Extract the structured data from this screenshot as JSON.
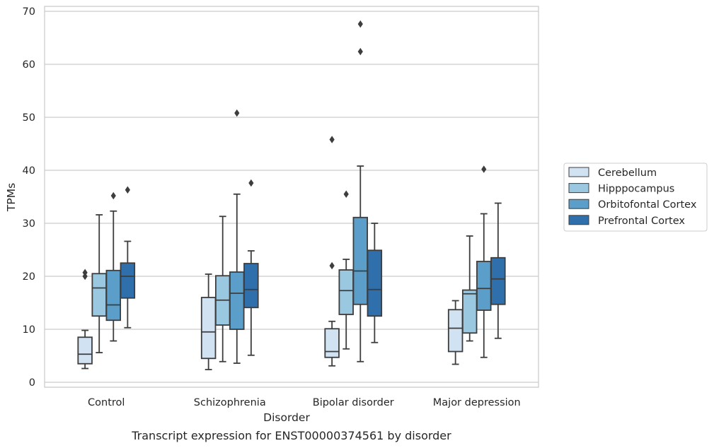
{
  "caption": "Transcript expression for ENST00000374561 by disorder",
  "chart_data": {
    "type": "box",
    "xlabel": "Disorder",
    "ylabel": "TPMs",
    "ylim": [
      -1,
      71
    ],
    "yticks": [
      0,
      10,
      20,
      30,
      40,
      50,
      60,
      70
    ],
    "grid": "horizontal",
    "legend_position": "right",
    "categories": [
      "Control",
      "Schizophrenia",
      "Bipolar disorder",
      "Major depression"
    ],
    "series": [
      {
        "name": "Cerebellum",
        "color": "#d1e2f2",
        "boxes": [
          {
            "whislo": 2.6,
            "q1": 3.5,
            "med": 5.3,
            "q3": 8.5,
            "whishi": 9.8,
            "fliers": [
              20.0,
              20.7
            ]
          },
          {
            "whislo": 2.4,
            "q1": 4.5,
            "med": 9.5,
            "q3": 16.0,
            "whishi": 20.4,
            "fliers": []
          },
          {
            "whislo": 3.1,
            "q1": 4.7,
            "med": 5.8,
            "q3": 10.1,
            "whishi": 11.5,
            "fliers": [
              22.0,
              45.8
            ]
          },
          {
            "whislo": 3.4,
            "q1": 5.8,
            "med": 10.2,
            "q3": 13.7,
            "whishi": 15.4,
            "fliers": []
          }
        ]
      },
      {
        "name": "Hipppocampus",
        "color": "#9ac8e0",
        "boxes": [
          {
            "whislo": 5.6,
            "q1": 12.5,
            "med": 17.8,
            "q3": 20.5,
            "whishi": 31.6,
            "fliers": []
          },
          {
            "whislo": 3.9,
            "q1": 10.8,
            "med": 15.5,
            "q3": 20.1,
            "whishi": 31.3,
            "fliers": []
          },
          {
            "whislo": 6.3,
            "q1": 12.8,
            "med": 17.3,
            "q3": 21.2,
            "whishi": 23.2,
            "fliers": [
              35.5
            ]
          },
          {
            "whislo": 7.8,
            "q1": 9.3,
            "med": 16.7,
            "q3": 17.4,
            "whishi": 27.6,
            "fliers": []
          }
        ]
      },
      {
        "name": "Orbitofontal Cortex",
        "color": "#5a9ec9",
        "boxes": [
          {
            "whislo": 7.8,
            "q1": 11.7,
            "med": 14.6,
            "q3": 21.1,
            "whishi": 32.3,
            "fliers": [
              35.2
            ]
          },
          {
            "whislo": 3.6,
            "q1": 10.0,
            "med": 16.8,
            "q3": 20.8,
            "whishi": 35.5,
            "fliers": [
              50.8
            ]
          },
          {
            "whislo": 3.9,
            "q1": 14.7,
            "med": 21.0,
            "q3": 31.1,
            "whishi": 40.8,
            "fliers": [
              62.4,
              67.6
            ]
          },
          {
            "whislo": 4.7,
            "q1": 13.6,
            "med": 17.7,
            "q3": 22.8,
            "whishi": 31.8,
            "fliers": [
              40.2
            ]
          }
        ]
      },
      {
        "name": "Prefrontal Cortex",
        "color": "#2f6fac",
        "boxes": [
          {
            "whislo": 10.3,
            "q1": 15.9,
            "med": 20.0,
            "q3": 22.5,
            "whishi": 26.6,
            "fliers": [
              36.3
            ]
          },
          {
            "whislo": 5.1,
            "q1": 14.1,
            "med": 17.5,
            "q3": 22.4,
            "whishi": 24.8,
            "fliers": [
              37.6
            ]
          },
          {
            "whislo": 7.5,
            "q1": 12.5,
            "med": 17.5,
            "q3": 24.9,
            "whishi": 30.0,
            "fliers": []
          },
          {
            "whislo": 8.3,
            "q1": 14.7,
            "med": 19.5,
            "q3": 23.5,
            "whishi": 33.8,
            "fliers": []
          }
        ]
      }
    ]
  }
}
